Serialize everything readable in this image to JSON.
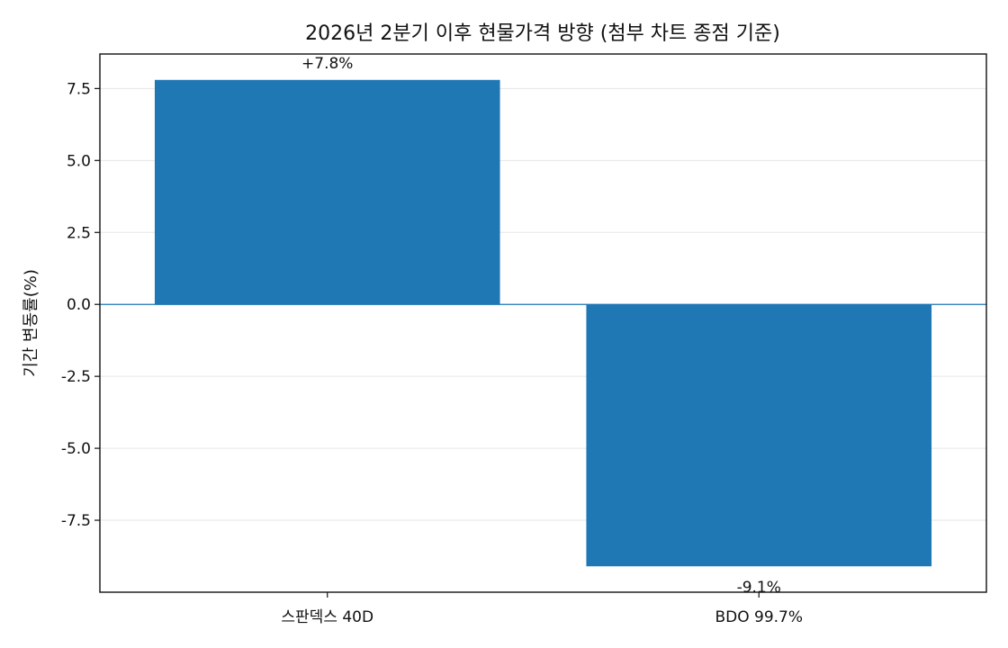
{
  "chart_data": {
    "type": "bar",
    "title": "2026년 2분기 이후 현물가격 방향 (첨부 차트 종점 기준)",
    "xlabel": "",
    "ylabel": "기간 변동률(%)",
    "categories": [
      "스판덱스 40D",
      "BDO 99.7%"
    ],
    "values": [
      7.8,
      -9.1
    ],
    "data_labels": [
      "+7.8%",
      "-9.1%"
    ],
    "ylim": [
      -10.0,
      8.7
    ],
    "yticks": [
      -7.5,
      -5.0,
      -2.5,
      0.0,
      2.5,
      5.0,
      7.5
    ],
    "ytick_labels": [
      "-7.5",
      "-5.0",
      "-2.5",
      "0.0",
      "2.5",
      "5.0",
      "7.5"
    ],
    "grid": "y",
    "legend": "none",
    "bar_color": "#1f77b4"
  }
}
